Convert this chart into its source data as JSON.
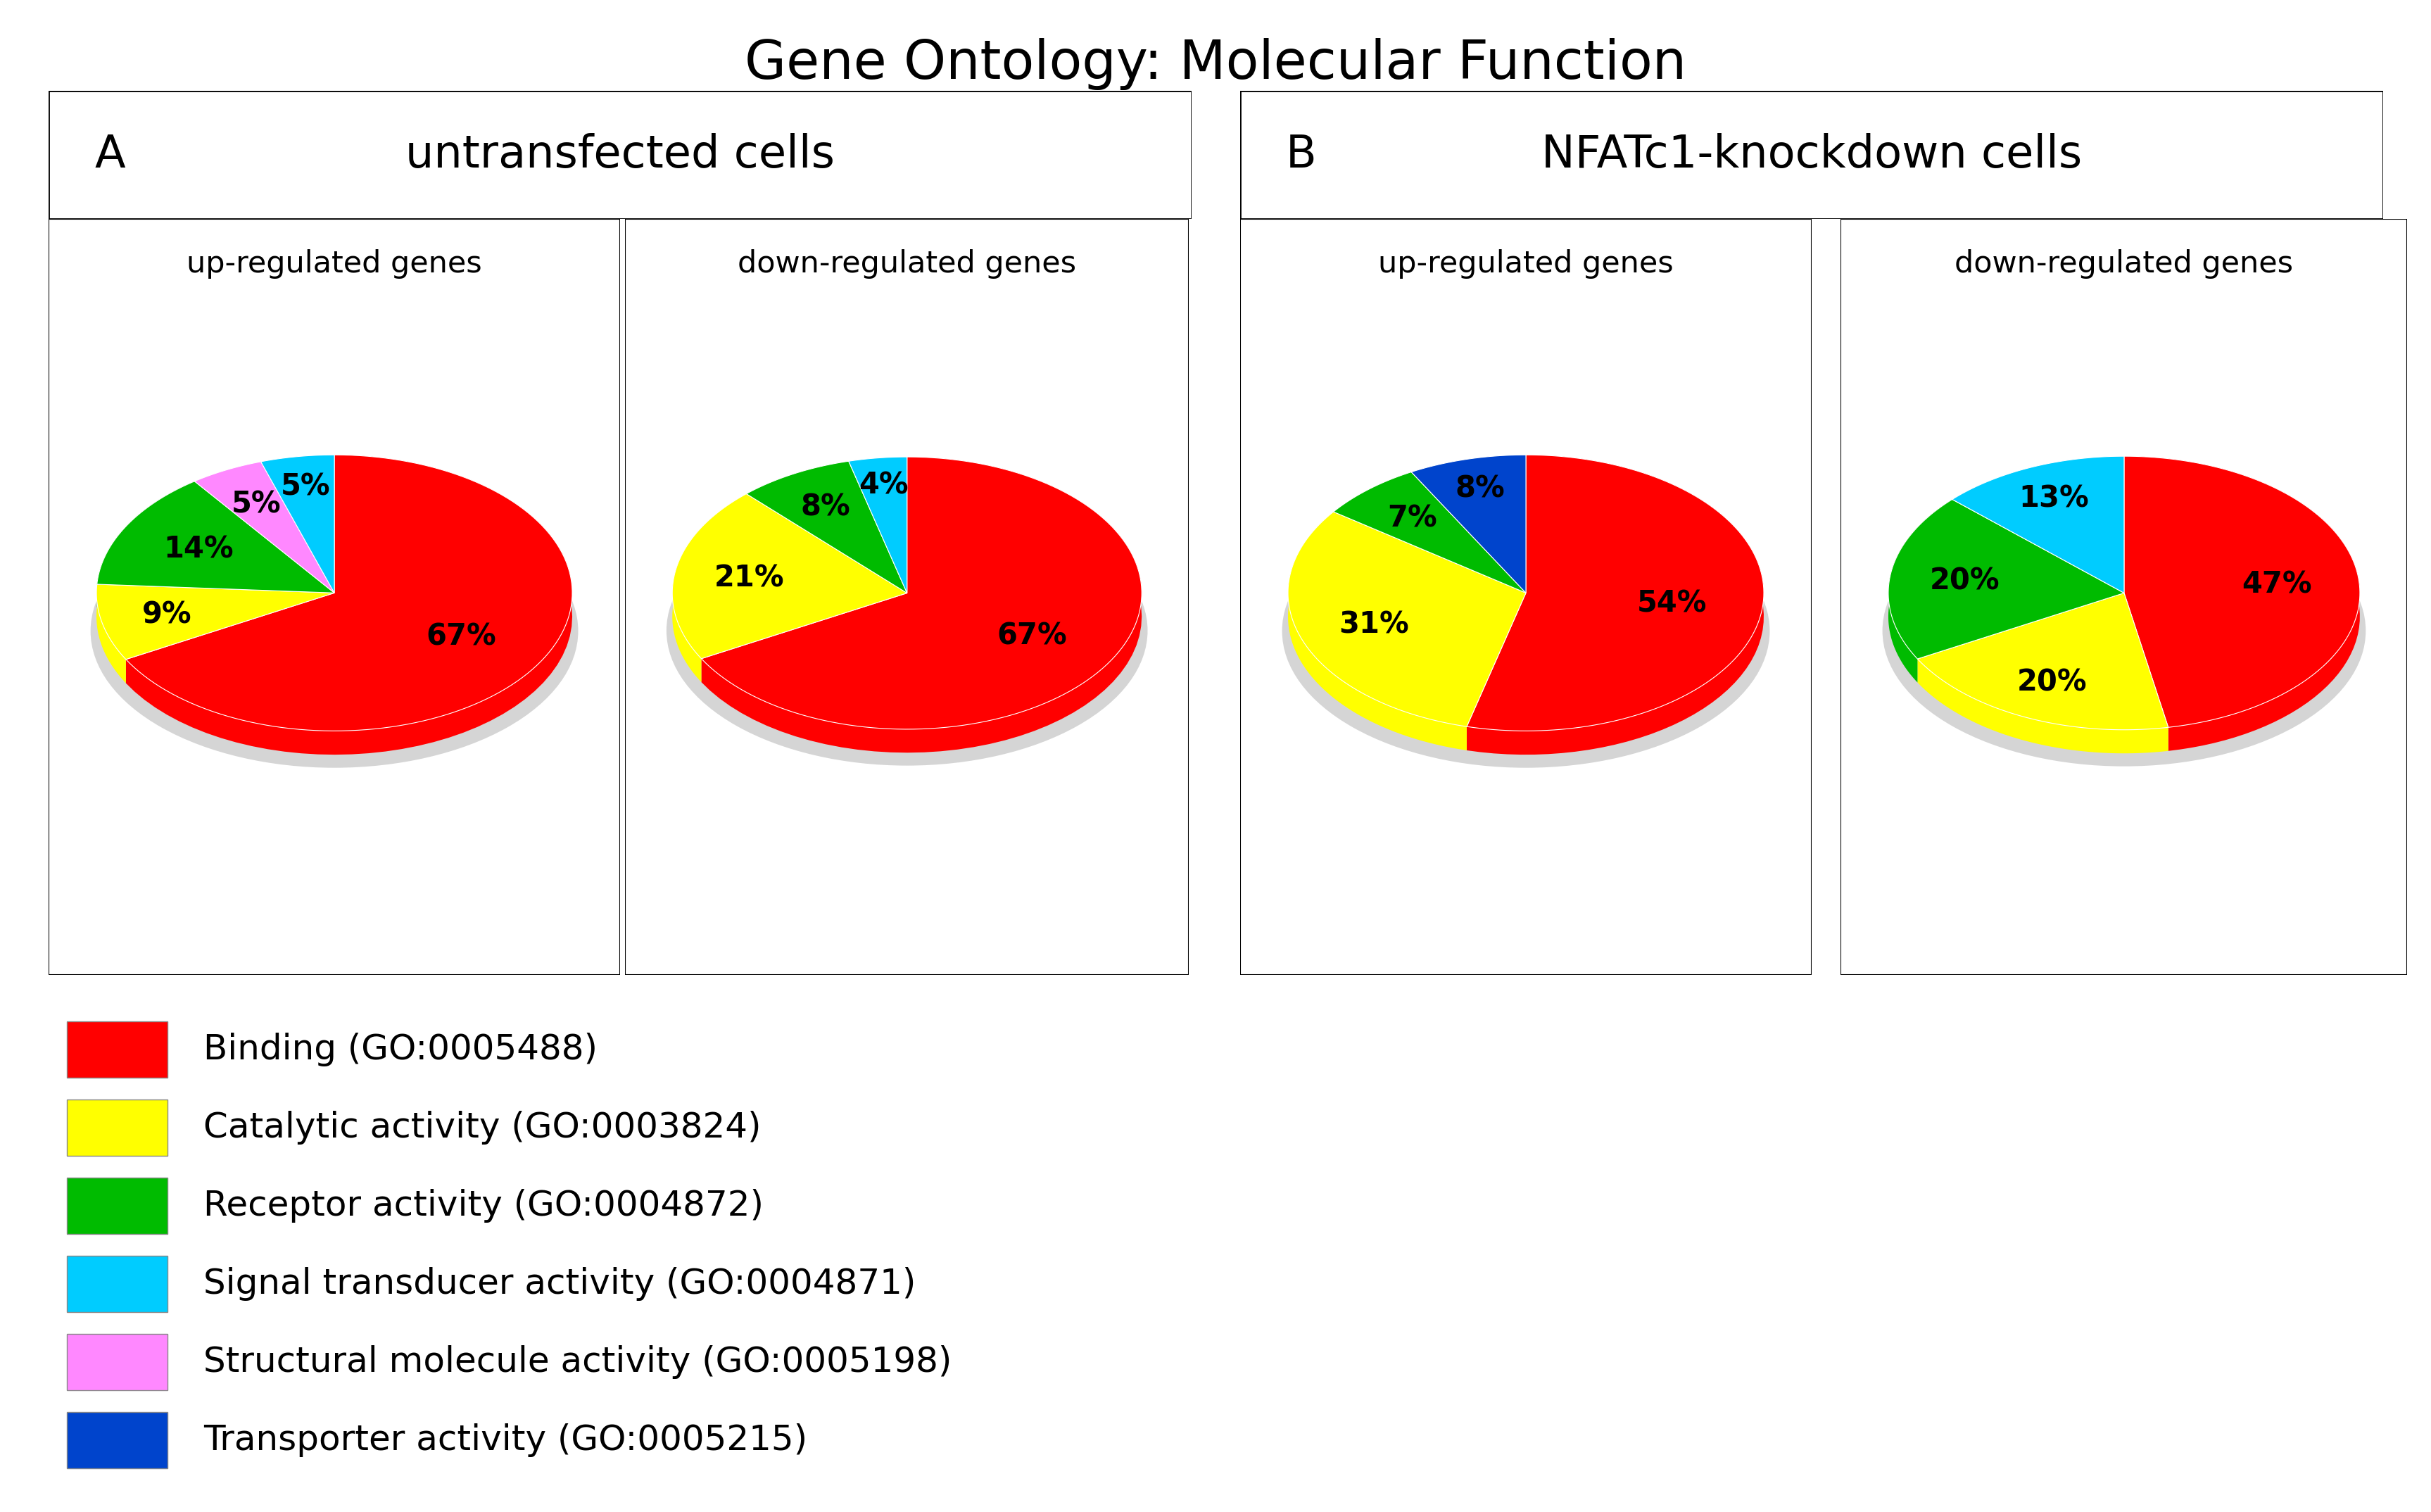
{
  "title": "Gene Ontology: Molecular Function",
  "panel_A_title": "untransfected cells",
  "panel_B_title": "NFATc1-knockdown cells",
  "up_label": "up-regulated genes",
  "down_label": "down-regulated genes",
  "panel_A_label": "A",
  "panel_B_label": "B",
  "pie_A_up": {
    "values": [
      67,
      9,
      14,
      5,
      5
    ],
    "colors": [
      "#FF0000",
      "#FFFF00",
      "#00BB00",
      "#FF88FF",
      "#00CCFF"
    ],
    "labels": [
      "67%",
      "9%",
      "14%",
      "5%",
      "5%"
    ],
    "label_r": [
      0.62,
      0.72,
      0.65,
      0.72,
      0.78
    ]
  },
  "pie_A_down": {
    "values": [
      67,
      21,
      8,
      4
    ],
    "colors": [
      "#FF0000",
      "#FFFF00",
      "#00BB00",
      "#00CCFF"
    ],
    "labels": [
      "67%",
      "21%",
      "8%",
      "4%"
    ],
    "label_r": [
      0.62,
      0.68,
      0.72,
      0.8
    ]
  },
  "pie_B_up": {
    "values": [
      54,
      31,
      7,
      8
    ],
    "colors": [
      "#FF0000",
      "#FFFF00",
      "#00BB00",
      "#0044CC"
    ],
    "labels": [
      "54%",
      "31%",
      "7%",
      "8%"
    ],
    "label_r": [
      0.62,
      0.68,
      0.72,
      0.78
    ]
  },
  "pie_B_down": {
    "values": [
      47,
      20,
      20,
      13
    ],
    "colors": [
      "#FF0000",
      "#FFFF00",
      "#00BB00",
      "#00CCFF"
    ],
    "labels": [
      "47%",
      "20%",
      "20%",
      "13%"
    ],
    "label_r": [
      0.65,
      0.72,
      0.68,
      0.75
    ]
  },
  "legend_items": [
    {
      "label": "Binding (GO:0005488)",
      "color": "#FF0000"
    },
    {
      "label": "Catalytic activity (GO:0003824)",
      "color": "#FFFF00"
    },
    {
      "label": "Receptor activity (GO:0004872)",
      "color": "#00BB00"
    },
    {
      "label": "Signal transducer activity (GO:0004871)",
      "color": "#00CCFF"
    },
    {
      "label": "Structural molecule activity (GO:0005198)",
      "color": "#FF88FF"
    },
    {
      "label": "Transporter activity (GO:0005215)",
      "color": "#0044CC"
    }
  ]
}
